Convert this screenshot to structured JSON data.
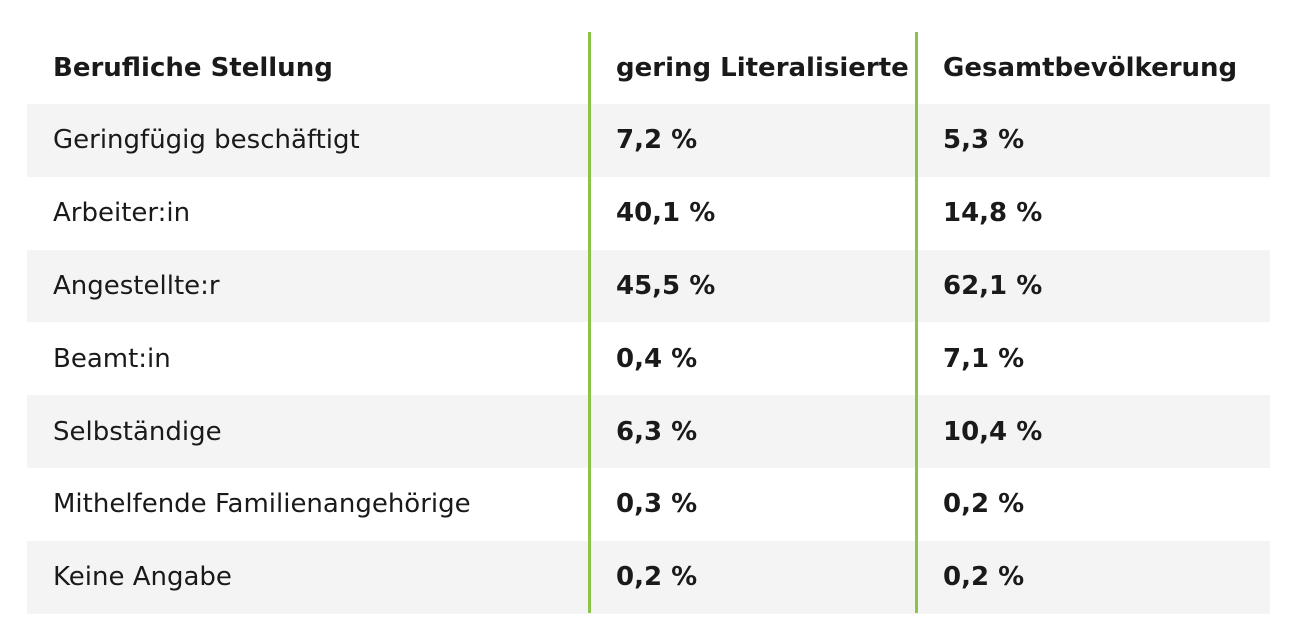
{
  "chart_data": {
    "type": "table",
    "columns": [
      "Berufliche Stellung",
      "gering Literalisierte",
      "Gesamtbevölkerung"
    ],
    "rows": [
      {
        "label": "Geringfügig beschäftigt",
        "values": [
          "7,2 %",
          "5,3 %"
        ]
      },
      {
        "label": "Arbeiter:in",
        "values": [
          "40,1 %",
          "14,8 %"
        ]
      },
      {
        "label": "Angestellte:r",
        "values": [
          "45,5 %",
          "62,1 %"
        ]
      },
      {
        "label": "Beamt:in",
        "values": [
          "0,4 %",
          "7,1 %"
        ]
      },
      {
        "label": "Selbständige",
        "values": [
          "6,3 %",
          "10,4 %"
        ]
      },
      {
        "label": "Mithelfende Familienangehörige",
        "values": [
          "0,3 %",
          "0,2 %"
        ]
      },
      {
        "label": "Keine Angabe",
        "values": [
          "0,2 %",
          "0,2 %"
        ]
      }
    ]
  },
  "colors": {
    "divider": "#8cc44a",
    "row_shade": "#f4f4f4",
    "text": "#1a1a1a"
  }
}
